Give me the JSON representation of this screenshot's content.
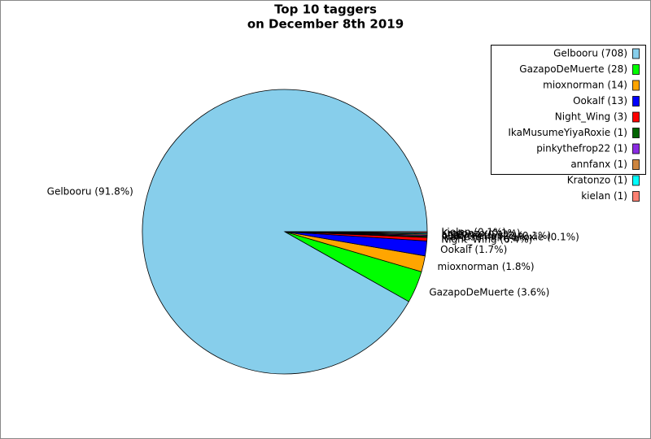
{
  "chart_data": {
    "type": "pie",
    "title": [
      "Top 10 taggers",
      "on December 8th 2019"
    ],
    "categories": [
      "Gelbooru (708)",
      "GazapoDeMuerte (28)",
      "mioxnorman (14)",
      "Ookalf (13)",
      "Night_Wing (3)",
      "IkaMusumeYiyaRoxie (1)",
      "pinkythefrop22 (1)",
      "annfanx (1)",
      "Kratonzo (1)",
      "kielan (1)"
    ],
    "values": [
      708,
      28,
      14,
      13,
      3,
      1,
      1,
      1,
      1,
      1
    ],
    "slice_labels": [
      "Gelbooru (91.8%)",
      "GazapoDeMuerte (3.6%)",
      "mioxnorman (1.8%)",
      "Ookalf (1.7%)",
      "Night_Wing (0.4%)",
      "IkaMusumeYiyaRoxie (0.1%)",
      "pinkythefrop22 (0.1%)",
      "annfanx (0.1%)",
      "Kratonzo (0.1%)",
      "kielan (0.1%)"
    ],
    "colors": [
      "#87ceeb",
      "#00ff00",
      "#ffa500",
      "#0000ff",
      "#ff0000",
      "#006400",
      "#8a2be2",
      "#cd853f",
      "#00ffff",
      "#fa8072"
    ],
    "legend": "upper right"
  }
}
